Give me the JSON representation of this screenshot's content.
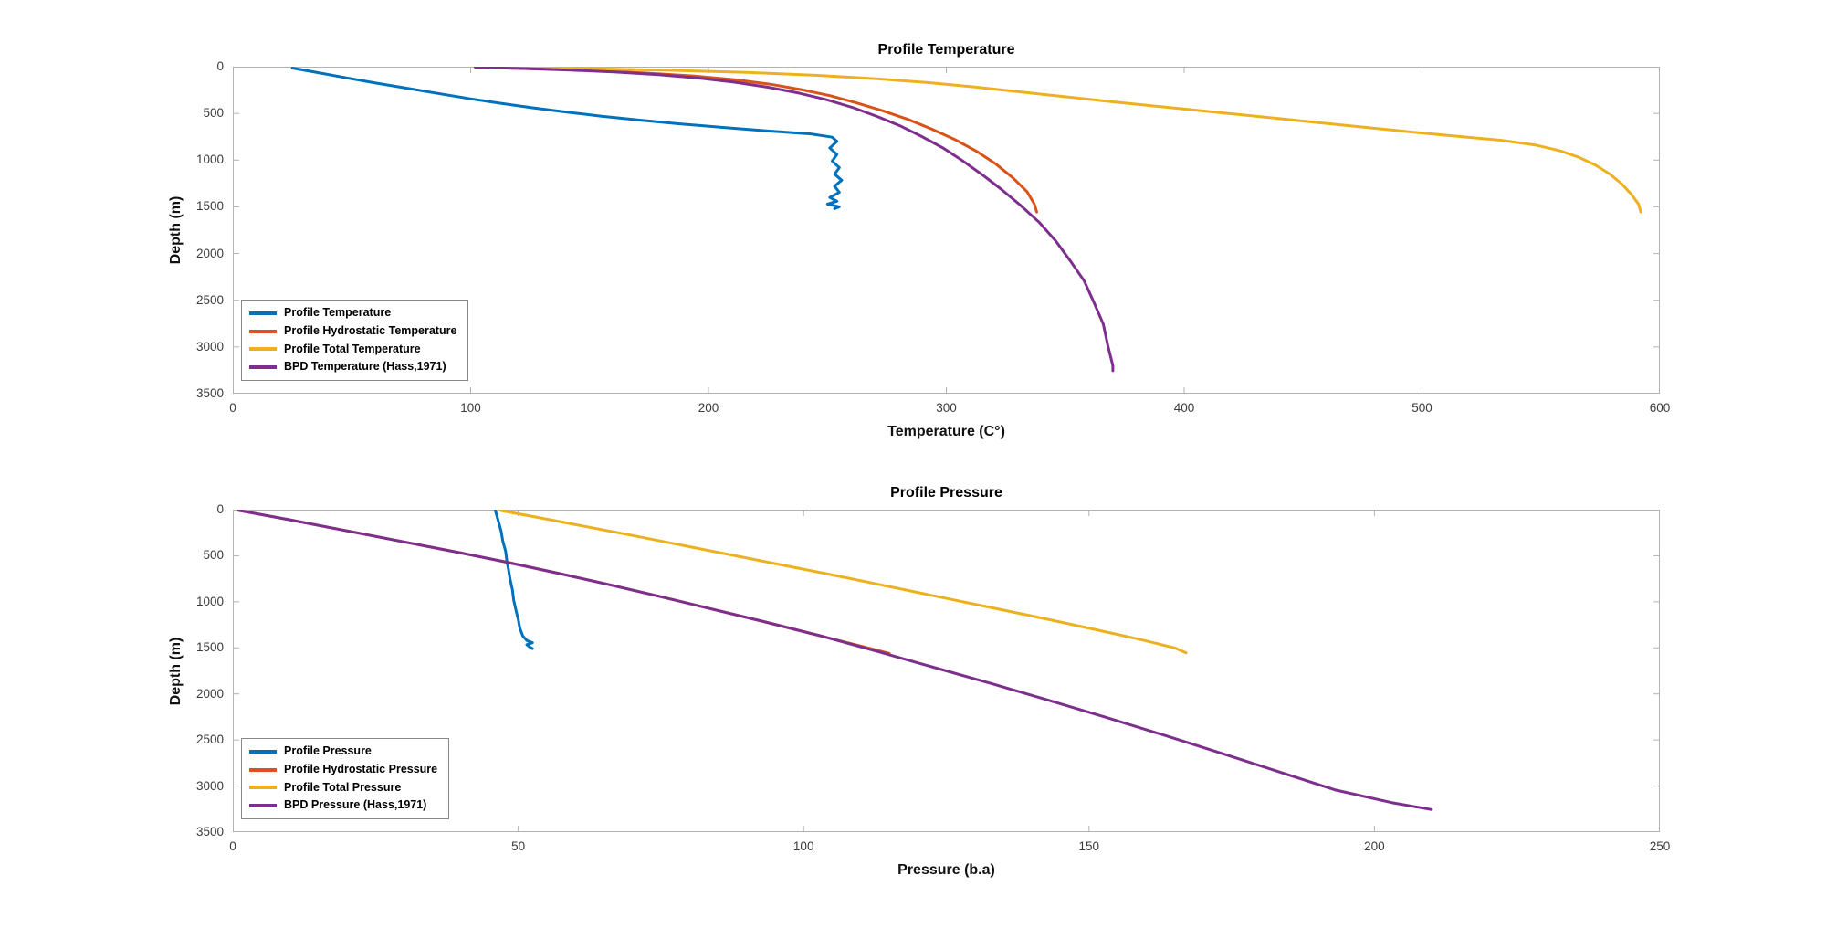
{
  "figure": {
    "background": "#ffffff",
    "axis_color": "#b2b2b2",
    "tick_text_color": "#3b3b3b"
  },
  "chart_data": [
    {
      "type": "line",
      "title": "Profile Temperature",
      "xlabel": "Temperature (C°)",
      "ylabel": "Depth (m)",
      "xlim": [
        0,
        600
      ],
      "ylim": [
        0,
        3500
      ],
      "y_reversed": true,
      "grid": false,
      "legend_position": "bottom-left-inside",
      "xticks": [
        0,
        100,
        200,
        300,
        400,
        500,
        600
      ],
      "yticks": [
        0,
        500,
        1000,
        1500,
        2000,
        2500,
        3000,
        3500
      ],
      "series": [
        {
          "name": "Profile Temperature",
          "color": "#0072BD",
          "points": [
            [
              25,
              15
            ],
            [
              36,
              65
            ],
            [
              48,
              120
            ],
            [
              60,
              175
            ],
            [
              73,
              230
            ],
            [
              86,
              285
            ],
            [
              99,
              340
            ],
            [
              112,
              390
            ],
            [
              126,
              440
            ],
            [
              140,
              485
            ],
            [
              155,
              530
            ],
            [
              171,
              572
            ],
            [
              188,
              612
            ],
            [
              206,
              650
            ],
            [
              225,
              688
            ],
            [
              243,
              720
            ],
            [
              252,
              755
            ],
            [
              254,
              800
            ],
            [
              251,
              870
            ],
            [
              254,
              940
            ],
            [
              252,
              1010
            ],
            [
              255,
              1080
            ],
            [
              253,
              1150
            ],
            [
              256,
              1215
            ],
            [
              253,
              1280
            ],
            [
              255,
              1345
            ],
            [
              251,
              1400
            ],
            [
              254,
              1440
            ],
            [
              250,
              1470
            ],
            [
              255,
              1500
            ],
            [
              253,
              1520
            ]
          ]
        },
        {
          "name": "Profile Hydrostatic Temperature",
          "color": "#D95319",
          "points": [
            [
              102,
              8
            ],
            [
              128,
              22
            ],
            [
              152,
              42
            ],
            [
              174,
              68
            ],
            [
              194,
              100
            ],
            [
              211,
              140
            ],
            [
              226,
              188
            ],
            [
              239,
              245
            ],
            [
              251,
              310
            ],
            [
              262,
              385
            ],
            [
              273,
              470
            ],
            [
              284,
              565
            ],
            [
              294,
              670
            ],
            [
              304,
              785
            ],
            [
              313,
              910
            ],
            [
              321,
              1045
            ],
            [
              328,
              1190
            ],
            [
              334,
              1340
            ],
            [
              337,
              1470
            ],
            [
              338,
              1555
            ]
          ]
        },
        {
          "name": "Profile Total Temperature",
          "color": "#EDB120",
          "points": [
            [
              108,
              8
            ],
            [
              146,
              20
            ],
            [
              183,
              38
            ],
            [
              216,
              62
            ],
            [
              245,
              92
            ],
            [
              270,
              128
            ],
            [
              292,
              170
            ],
            [
              312,
              218
            ],
            [
              331,
              270
            ],
            [
              350,
              322
            ],
            [
              370,
              376
            ],
            [
              391,
              430
            ],
            [
              412,
              484
            ],
            [
              433,
              538
            ],
            [
              454,
              592
            ],
            [
              475,
              646
            ],
            [
              496,
              700
            ],
            [
              516,
              748
            ],
            [
              534,
              790
            ],
            [
              548,
              840
            ],
            [
              558,
              900
            ],
            [
              566,
              970
            ],
            [
              573,
              1055
            ],
            [
              579,
              1150
            ],
            [
              584,
              1255
            ],
            [
              588,
              1365
            ],
            [
              591,
              1470
            ],
            [
              592,
              1555
            ]
          ]
        },
        {
          "name": "BPD Temperature (Hass,1971)",
          "color": "#7E2F8E",
          "points": [
            [
              102,
              8
            ],
            [
              122,
              20
            ],
            [
              142,
              36
            ],
            [
              161,
              58
            ],
            [
              179,
              86
            ],
            [
              196,
              122
            ],
            [
              211,
              166
            ],
            [
              225,
              220
            ],
            [
              238,
              283
            ],
            [
              250,
              356
            ],
            [
              261,
              440
            ],
            [
              271,
              534
            ],
            [
              281,
              638
            ],
            [
              290,
              752
            ],
            [
              299,
              876
            ],
            [
              307,
              1010
            ],
            [
              315,
              1155
            ],
            [
              323,
              1310
            ],
            [
              331,
              1480
            ],
            [
              339,
              1665
            ],
            [
              346,
              1865
            ],
            [
              352,
              2075
            ],
            [
              358,
              2295
            ],
            [
              362,
              2520
            ],
            [
              366,
              2755
            ],
            [
              368,
              2995
            ],
            [
              370,
              3200
            ],
            [
              370,
              3255
            ]
          ]
        }
      ]
    },
    {
      "type": "line",
      "title": "Profile Pressure",
      "xlabel": "Pressure (b.a)",
      "ylabel": "Depth (m)",
      "xlim": [
        0,
        250
      ],
      "ylim": [
        0,
        3500
      ],
      "y_reversed": true,
      "grid": false,
      "legend_position": "bottom-left-inside",
      "xticks": [
        0,
        50,
        100,
        150,
        200,
        250
      ],
      "yticks": [
        0,
        500,
        1000,
        1500,
        2000,
        2500,
        3000,
        3500
      ],
      "series": [
        {
          "name": "Profile Pressure",
          "color": "#0072BD",
          "points": [
            [
              46,
              10
            ],
            [
              46.5,
              120
            ],
            [
              47,
              230
            ],
            [
              47.3,
              340
            ],
            [
              47.8,
              450
            ],
            [
              48,
              550
            ],
            [
              48.3,
              650
            ],
            [
              48.6,
              760
            ],
            [
              49,
              870
            ],
            [
              49.2,
              980
            ],
            [
              49.6,
              1090
            ],
            [
              50,
              1190
            ],
            [
              50.3,
              1290
            ],
            [
              50.8,
              1370
            ],
            [
              51.5,
              1420
            ],
            [
              52.5,
              1445
            ],
            [
              51.5,
              1465
            ],
            [
              52,
              1490
            ],
            [
              52.5,
              1508
            ]
          ]
        },
        {
          "name": "Profile Hydrostatic Pressure",
          "color": "#D95319",
          "points": [
            [
              1,
              8
            ],
            [
              10,
              110
            ],
            [
              20,
              230
            ],
            [
              30,
              350
            ],
            [
              40,
              470
            ],
            [
              48,
              570
            ],
            [
              57,
              690
            ],
            [
              66,
              815
            ],
            [
              75,
              945
            ],
            [
              84,
              1080
            ],
            [
              93,
              1215
            ],
            [
              102,
              1355
            ],
            [
              110,
              1480
            ],
            [
              115,
              1560
            ]
          ]
        },
        {
          "name": "Profile Total Pressure",
          "color": "#EDB120",
          "points": [
            [
              47,
              10
            ],
            [
              54,
              90
            ],
            [
              62,
              185
            ],
            [
              70,
              280
            ],
            [
              79,
              390
            ],
            [
              88,
              500
            ],
            [
              97,
              610
            ],
            [
              106,
              720
            ],
            [
              115,
              835
            ],
            [
              124,
              950
            ],
            [
              133,
              1065
            ],
            [
              142,
              1180
            ],
            [
              151,
              1300
            ],
            [
              159,
              1410
            ],
            [
              165,
              1500
            ],
            [
              167,
              1555
            ]
          ]
        },
        {
          "name": "BPD Pressure (Hass,1971)",
          "color": "#7E2F8E",
          "points": [
            [
              1,
              8
            ],
            [
              10,
              110
            ],
            [
              20,
              230
            ],
            [
              30,
              350
            ],
            [
              40,
              470
            ],
            [
              48,
              570
            ],
            [
              57,
              690
            ],
            [
              66,
              815
            ],
            [
              75,
              945
            ],
            [
              84,
              1080
            ],
            [
              93,
              1215
            ],
            [
              103,
              1370
            ],
            [
              113,
              1540
            ],
            [
              123,
              1715
            ],
            [
              133,
              1890
            ],
            [
              143,
              2070
            ],
            [
              153,
              2255
            ],
            [
              163,
              2445
            ],
            [
              173,
              2640
            ],
            [
              183,
              2840
            ],
            [
              193,
              3040
            ],
            [
              203,
              3180
            ],
            [
              210,
              3255
            ]
          ]
        }
      ]
    }
  ]
}
